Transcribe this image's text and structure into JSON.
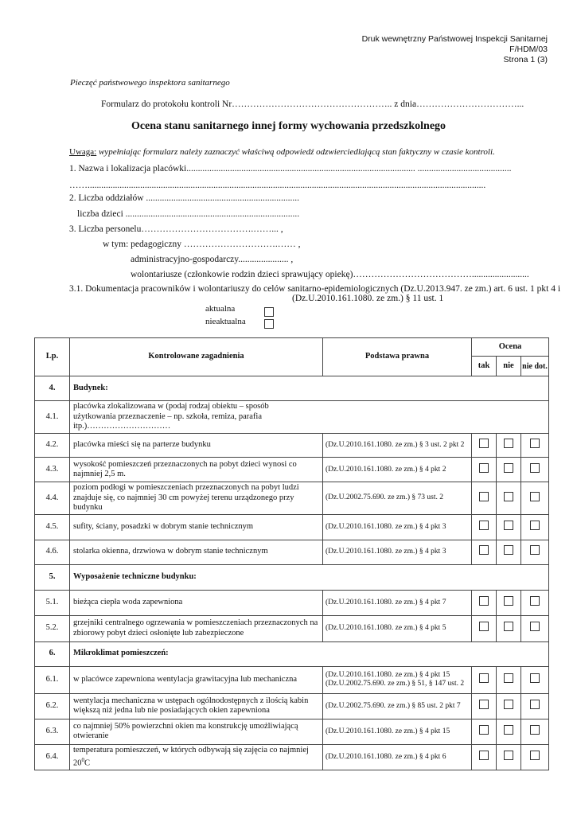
{
  "header": {
    "line1": "Druk wewnętrzny Państwowej Inspekcji Sanitarnej",
    "line2": "F/HDM/03",
    "line3": "Strona 1 (3)"
  },
  "stamp_label": "Pieczęć państwowego inspektora sanitarnego",
  "protocol_line": "Formularz do protokołu kontroli Nr……………………………………………..  z dnia……………………………...",
  "title": "Ocena stanu sanitarnego innej formy wychowania przedszkolnego",
  "note": {
    "label": "Uwaga:",
    "text": " wypełniając formularz należy zaznaczyć właściwą odpowiedź odzwierciedlającą stan faktyczny w czasie kontroli."
  },
  "fields": {
    "f1": "1.  Nazwa i lokalizacja placówki.................................................................................................... .........................................",
    "f1b": "……..............................................................................................................................................................................",
    "f2": "2. Liczba oddziałów ...................................................................",
    "f2b": "liczba dzieci ............................................................................",
    "f3": "3. Liczba personelu……………………………….……...  ,",
    "f3a": "w tym: pedagogiczny ………………………….……  ,",
    "f3b": "administracyjno-gospodarczy...................... ,",
    "f3c": "wolontariusze (członkowie rodzin dzieci sprawujący opiekę)………………………………….........................",
    "f31": "3.1. Dokumentacja pracowników i wolontariuszy do celów sanitarno-epidemiologicznych  (Dz.U.2013.947. ze zm.)  art. 6 ust. 1 pkt 4 i",
    "f31b": "(Dz.U.2010.161.1080. ze zm.) § 11 ust. 1",
    "opt1": "aktualna",
    "opt2": "nieaktualna"
  },
  "table": {
    "headers": {
      "lp": "Lp.",
      "issue": "Kontrolowane zagadnienia",
      "law": "Podstawa prawna",
      "rating": "Ocena",
      "yes": "tak",
      "no": "nie",
      "na": "nie dot."
    },
    "rows": [
      {
        "lp": "4.",
        "issue": "Budynek:",
        "section": true
      },
      {
        "lp": "4.1.",
        "issue": "placówka zlokalizowana w (podaj rodzaj obiektu – sposób użytkowania przeznaczenie – np. szkoła, remiza, parafia itp.)…………………………",
        "full": true
      },
      {
        "lp": "4.2.",
        "issue": "placówka mieści się na parterze budynku",
        "law": "(Dz.U.2010.161.1080. ze zm.) § 3 ust. 2 pkt 2"
      },
      {
        "lp": "4.3.",
        "issue": "wysokość pomieszczeń przeznaczonych na pobyt dzieci wynosi co najmniej 2,5 m.",
        "law": "(Dz.U.2010.161.1080. ze zm.) § 4 pkt  2"
      },
      {
        "lp": "4.4.",
        "issue": "poziom podłogi w  pomieszczeniach przeznaczonych na pobyt ludzi znajduje się, co najmniej 30 cm powyżej terenu urządzonego przy budynku",
        "law": "(Dz.U.2002.75.690. ze zm.) § 73 ust. 2"
      },
      {
        "lp": "4.5.",
        "issue": "sufity, ściany, posadzki w dobrym stanie technicznym",
        "law": "(Dz.U.2010.161.1080. ze zm.) § 4 pkt 3"
      },
      {
        "lp": "4.6.",
        "issue": "stolarka okienna, drzwiowa w dobrym stanie technicznym",
        "law": "(Dz.U.2010.161.1080. ze zm.) § 4 pkt 3"
      },
      {
        "lp": "5.",
        "issue": "Wyposażenie techniczne budynku:",
        "section": true
      },
      {
        "lp": "5.1.",
        "issue": "bieżąca ciepła woda zapewniona",
        "law": "(Dz.U.2010.161.1080. ze zm.) § 4 pkt 7"
      },
      {
        "lp": "5.2.",
        "issue": "grzejniki centralnego ogrzewania w pomieszczeniach przeznaczonych na zbiorowy pobyt dzieci osłonięte lub zabezpieczone",
        "law": "(Dz.U.2010.161.1080. ze zm.) § 4 pkt 5"
      },
      {
        "lp": "6.",
        "issue": "Mikroklimat pomieszczeń:",
        "section": true
      },
      {
        "lp": "6.1.",
        "issue": "w placówce zapewniona wentylacja grawitacyjna lub mechaniczna",
        "law": "(Dz.U.2010.161.1080. ze zm.) § 4 pkt 15 (Dz.U.2002.75.690. ze zm.) § 51, § 147 ust. 2"
      },
      {
        "lp": "6.2.",
        "issue": "wentylacja mechaniczna w ustępach ogólnodostępnych z ilością kabin większą niż jedna lub nie posiadających okien zapewniona",
        "law": "(Dz.U.2002.75.690. ze zm.) § 85 ust. 2 pkt 7"
      },
      {
        "lp": "6.3.",
        "issue": "co najmniej 50% powierzchni okien ma konstrukcję umożliwiającą otwieranie",
        "law": "(Dz.U.2010.161.1080. ze zm.) § 4 pkt 15"
      },
      {
        "lp": "6.4.",
        "issue": "temperatura pomieszczeń, w których odbywają się zajęcia co najmniej 20",
        "sup": "0",
        "suffix": "C",
        "law": "(Dz.U.2010.161.1080. ze zm.) § 4 pkt 6"
      }
    ]
  }
}
